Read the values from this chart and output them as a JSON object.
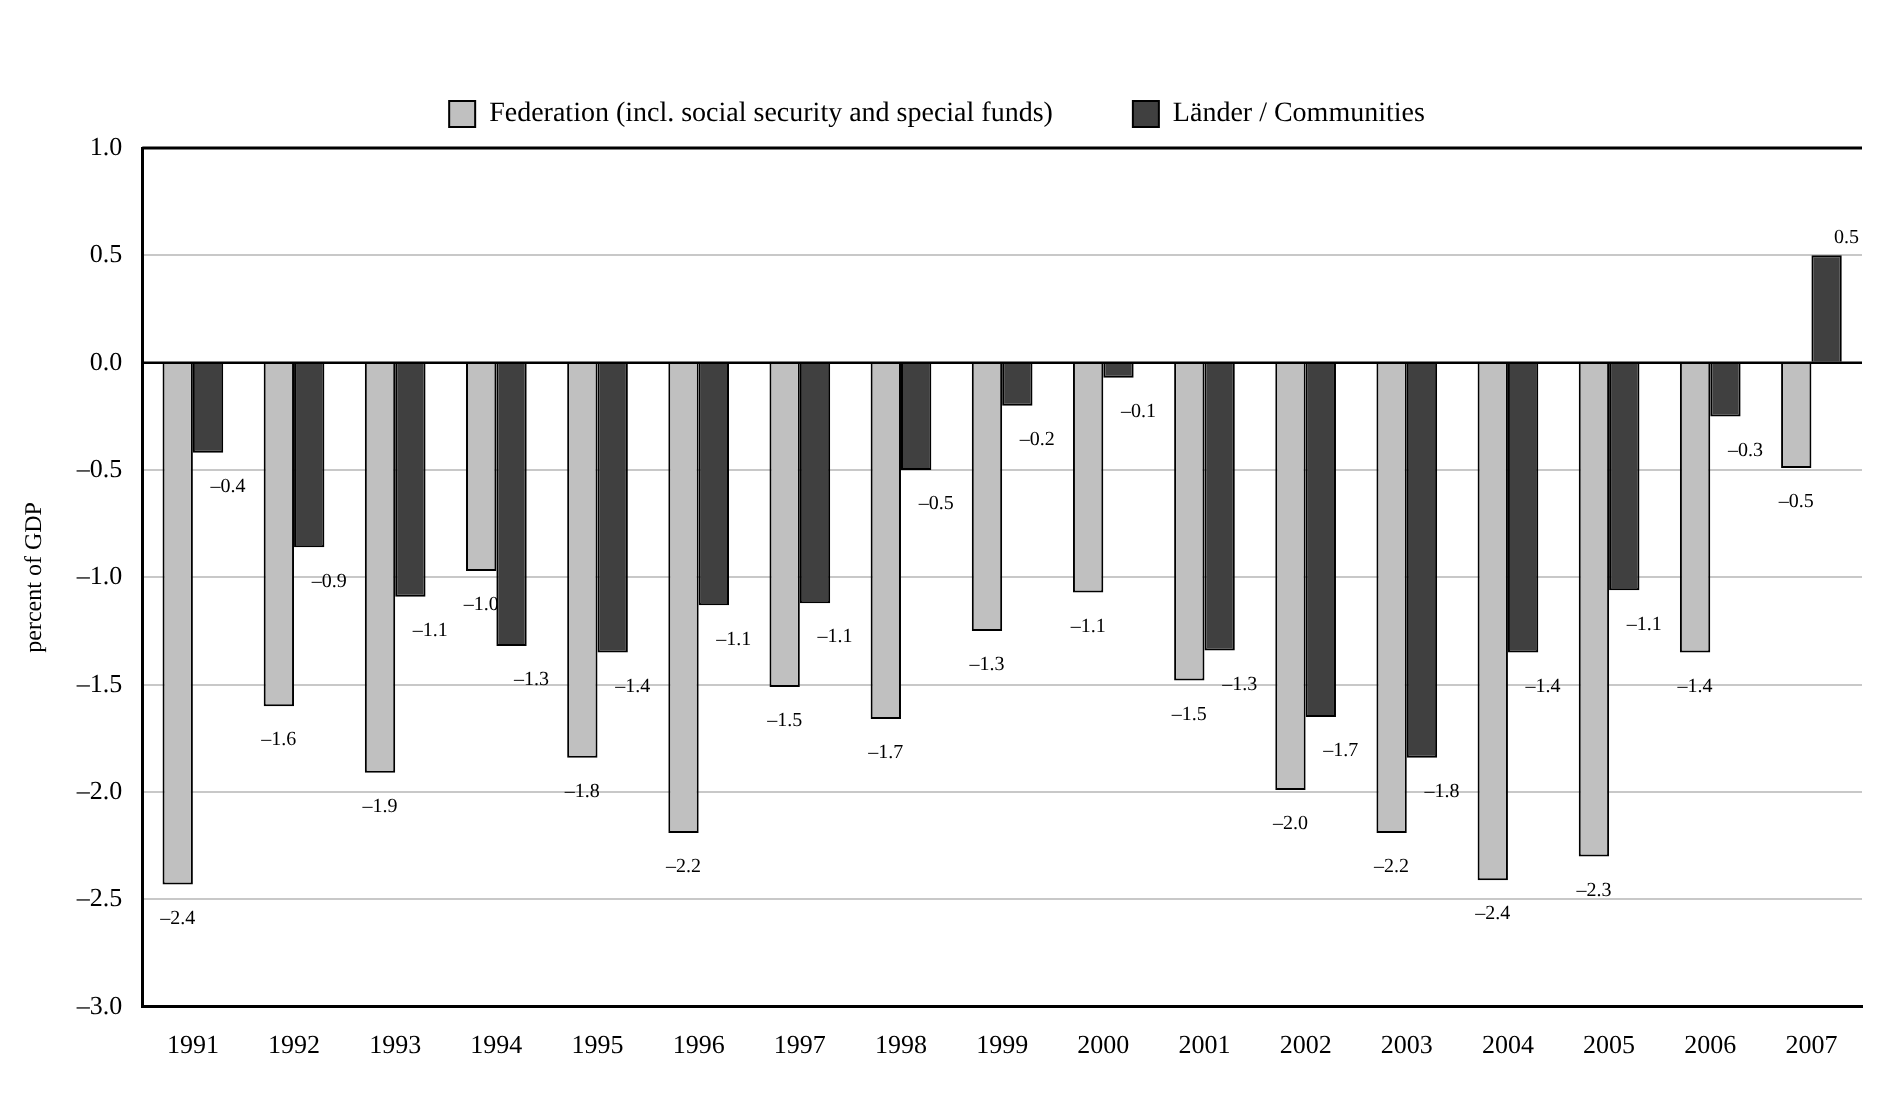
{
  "chart_data": {
    "type": "bar",
    "ylabel": "percent of GDP",
    "categories": [
      "1991",
      "1992",
      "1993",
      "1994",
      "1995",
      "1996",
      "1997",
      "1998",
      "1999",
      "2000",
      "2001",
      "2002",
      "2003",
      "2004",
      "2005",
      "2006",
      "2007"
    ],
    "series": [
      {
        "name": "Federation (incl. social security and special funds)",
        "color": "#c0c0c0",
        "values": [
          -2.43,
          -1.6,
          -1.91,
          -0.97,
          -1.84,
          -2.19,
          -1.51,
          -1.66,
          -1.25,
          -1.07,
          -1.48,
          -1.99,
          -2.19,
          -2.41,
          -2.3,
          -1.35,
          -0.49
        ],
        "value_labels": [
          "–2.4",
          "–1.6",
          "–1.9",
          "–1.0",
          "–1.8",
          "–2.2",
          "–1.5",
          "–1.7",
          "–1.3",
          "–1.1",
          "–1.5",
          "–2.0",
          "–2.2",
          "–2.4",
          "–2.3",
          "–1.4",
          "–0.5"
        ]
      },
      {
        "name": "Länder / Communities",
        "color": "#404040",
        "values": [
          -0.42,
          -0.86,
          -1.09,
          -1.32,
          -1.35,
          -1.13,
          -1.12,
          -0.5,
          -0.2,
          -0.07,
          -1.34,
          -1.65,
          -1.84,
          -1.35,
          -1.06,
          -0.25,
          0.5
        ],
        "value_labels": [
          "–0.4",
          "–0.9",
          "–1.1",
          "–1.3",
          "–1.4",
          "–1.1",
          "–1.1",
          "–0.5",
          "–0.2",
          "–0.1",
          "–1.3",
          "–1.7",
          "–1.8",
          "–1.4",
          "–1.1",
          "–0.3",
          "0.5"
        ]
      }
    ],
    "ylim": [
      -3.0,
      1.0
    ],
    "yticks": [
      {
        "value": -3.0,
        "label": "–3.0"
      },
      {
        "value": -2.5,
        "label": "–2.5"
      },
      {
        "value": -2.0,
        "label": "–2.0"
      },
      {
        "value": -1.5,
        "label": "–1.5"
      },
      {
        "value": -1.0,
        "label": "–1.0"
      },
      {
        "value": -0.5,
        "label": "–0.5"
      },
      {
        "value": 0,
        "label": "0.0"
      },
      {
        "value": 0.5,
        "label": "0.5"
      },
      {
        "value": 1.0,
        "label": "1.0"
      }
    ],
    "grid": "y",
    "legend": "top"
  }
}
